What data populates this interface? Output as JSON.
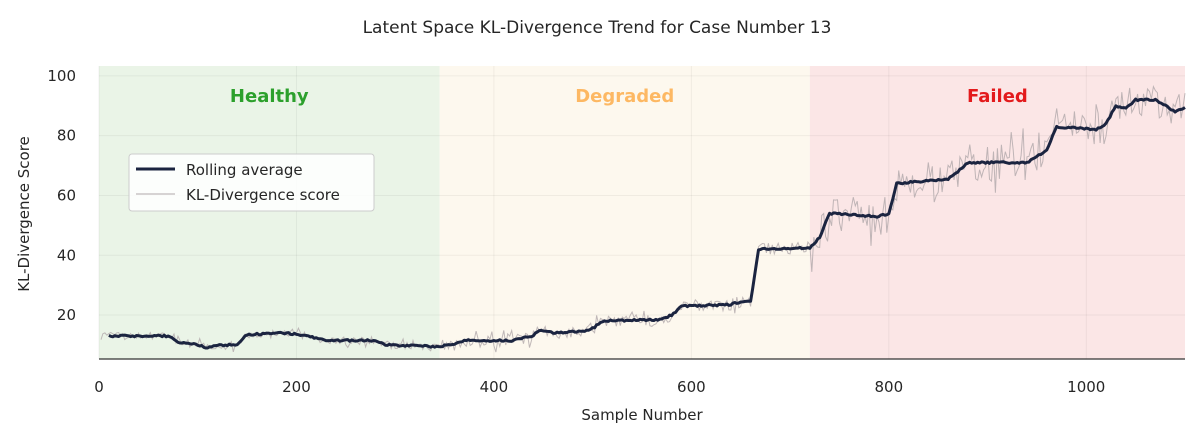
{
  "chart_data": {
    "type": "line",
    "title": "Latent Space KL-Divergence Trend for Case Number 13",
    "xlabel": "Sample Number",
    "ylabel": "KL-Divergence Score",
    "xlim": [
      0,
      1100
    ],
    "ylim": [
      5.3,
      103.3
    ],
    "xticks": [
      0,
      200,
      400,
      600,
      800,
      1000
    ],
    "yticks": [
      20,
      40,
      60,
      80,
      100
    ],
    "grid": true,
    "legend": {
      "placement": "upper-left",
      "entries": [
        "Rolling average",
        "KL-Divergence score"
      ]
    },
    "regions": [
      {
        "label": "Healthy",
        "start": 0,
        "end": 345,
        "fill": "#eaf4e7",
        "text_color": "#2ca02c"
      },
      {
        "label": "Degraded",
        "start": 345,
        "end": 720,
        "fill": "#fdf8ee",
        "text_color": "#fdb863"
      },
      {
        "label": "Failed",
        "start": 720,
        "end": 1100,
        "fill": "#fbe6e6",
        "text_color": "#e31a1c"
      }
    ],
    "series": [
      {
        "name": "Rolling average",
        "color": "#1b2440",
        "points": [
          [
            10,
            13
          ],
          [
            70,
            13
          ],
          [
            80,
            11
          ],
          [
            100,
            10
          ],
          [
            110,
            9
          ],
          [
            120,
            10
          ],
          [
            140,
            10
          ],
          [
            150,
            13.5
          ],
          [
            190,
            14
          ],
          [
            210,
            13
          ],
          [
            230,
            11.5
          ],
          [
            280,
            11.5
          ],
          [
            290,
            10
          ],
          [
            340,
            9.5
          ],
          [
            360,
            10
          ],
          [
            370,
            11.5
          ],
          [
            420,
            11.5
          ],
          [
            440,
            13
          ],
          [
            445,
            15
          ],
          [
            460,
            14
          ],
          [
            490,
            14.5
          ],
          [
            500,
            15.5
          ],
          [
            510,
            18
          ],
          [
            570,
            18.5
          ],
          [
            580,
            20
          ],
          [
            590,
            23
          ],
          [
            640,
            23.5
          ],
          [
            650,
            24.5
          ],
          [
            660,
            24.5
          ],
          [
            668,
            42
          ],
          [
            720,
            42.5
          ],
          [
            730,
            46
          ],
          [
            740,
            54
          ],
          [
            790,
            53
          ],
          [
            800,
            54
          ],
          [
            808,
            64
          ],
          [
            840,
            65
          ],
          [
            860,
            65.5
          ],
          [
            870,
            68
          ],
          [
            880,
            71
          ],
          [
            940,
            71
          ],
          [
            960,
            75
          ],
          [
            970,
            83
          ],
          [
            1010,
            82
          ],
          [
            1020,
            84
          ],
          [
            1030,
            90
          ],
          [
            1040,
            89
          ],
          [
            1050,
            92
          ],
          [
            1070,
            92
          ],
          [
            1090,
            88
          ],
          [
            1100,
            89.5
          ]
        ]
      },
      {
        "name": "KL-Divergence score",
        "color": "#b0a8aa",
        "spread_by_region": {
          "Healthy": 1.5,
          "Degraded": 2.5,
          "Failed": 8
        }
      }
    ]
  }
}
